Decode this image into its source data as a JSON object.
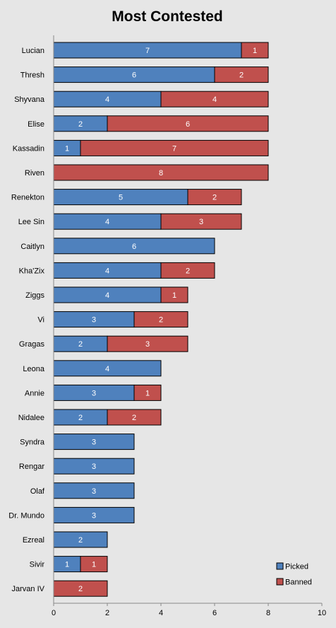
{
  "chart_data": {
    "type": "bar",
    "orientation": "horizontal",
    "stacked": true,
    "title": "Most Contested",
    "xlabel": "",
    "ylabel": "",
    "xlim": [
      0,
      10
    ],
    "x_ticks": [
      0,
      2,
      4,
      6,
      8,
      10
    ],
    "grid": false,
    "legend_position": "bottom-right",
    "categories": [
      "Lucian",
      "Thresh",
      "Shyvana",
      "Elise",
      "Kassadin",
      "Riven",
      "Renekton",
      "Lee Sin",
      "Caitlyn",
      "Kha'Zix",
      "Ziggs",
      "Vi",
      "Gragas",
      "Leona",
      "Annie",
      "Nidalee",
      "Syndra",
      "Rengar",
      "Olaf",
      "Dr. Mundo",
      "Ezreal",
      "Sivir",
      "Jarvan IV"
    ],
    "series": [
      {
        "name": "Picked",
        "color": "#4f81bd",
        "values": [
          7,
          6,
          4,
          2,
          1,
          0,
          5,
          4,
          6,
          4,
          4,
          3,
          2,
          4,
          3,
          2,
          3,
          3,
          3,
          3,
          2,
          1,
          0
        ]
      },
      {
        "name": "Banned",
        "color": "#c0504d",
        "values": [
          1,
          2,
          4,
          6,
          7,
          8,
          2,
          3,
          0,
          2,
          1,
          2,
          3,
          0,
          1,
          2,
          0,
          0,
          0,
          0,
          0,
          1,
          2
        ]
      }
    ]
  }
}
